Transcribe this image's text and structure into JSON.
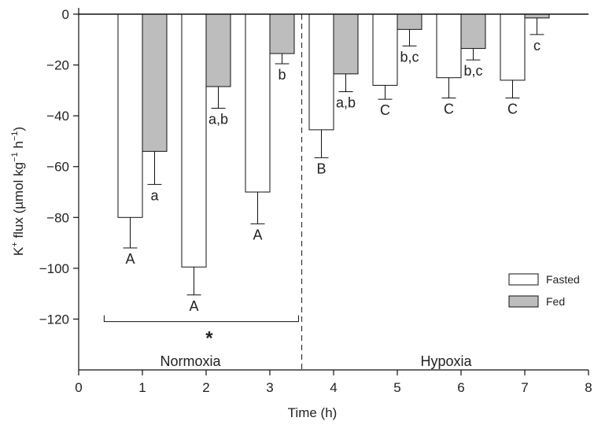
{
  "chart_data": {
    "type": "bar",
    "xlabel": "Time (h)",
    "ylabel_parts": [
      "K",
      "+",
      " flux (µmol kg",
      "−1",
      " h",
      "−1",
      ")"
    ],
    "xlim": [
      0,
      8
    ],
    "ylim": [
      -140,
      0
    ],
    "x_ticks": [
      "0",
      "1",
      "2",
      "3",
      "4",
      "5",
      "6",
      "7",
      "8"
    ],
    "y_ticks": [
      "0",
      "−20",
      "−40",
      "−60",
      "−80",
      "−100",
      "−120"
    ],
    "y_tick_values": [
      0,
      -20,
      -40,
      -60,
      -80,
      -100,
      -120
    ],
    "categories": [
      1,
      2,
      3,
      4,
      5,
      6,
      7
    ],
    "series": [
      {
        "name": "Fasted",
        "color": "#ffffff",
        "values": [
          -80,
          -99.5,
          -70,
          -45.5,
          -28,
          -25,
          -26
        ],
        "error": [
          12,
          11,
          12.5,
          11,
          5.5,
          8,
          7
        ],
        "letters": [
          "A",
          "A",
          "A",
          "B",
          "C",
          "C",
          "C"
        ]
      },
      {
        "name": "Fed",
        "color": "#bdbdbd",
        "values": [
          -54,
          -28.5,
          -15.5,
          -23.5,
          -6,
          -13.5,
          -1.5
        ],
        "error": [
          13,
          8.5,
          4,
          7,
          6.5,
          4.5,
          6.5
        ],
        "letters": [
          "a",
          "a,b",
          "b",
          "a,b",
          "b,c",
          "b,c",
          "c"
        ]
      }
    ],
    "regions": [
      {
        "label": "Normoxia",
        "from": 0,
        "to": 3.5
      },
      {
        "label": "Hypoxia",
        "from": 3.5,
        "to": 8
      }
    ],
    "divider_x": 3.5,
    "significance": {
      "symbol": "*",
      "from": 0.4,
      "to": 3.45,
      "y": -121
    },
    "legend_position": "bottom-right"
  }
}
